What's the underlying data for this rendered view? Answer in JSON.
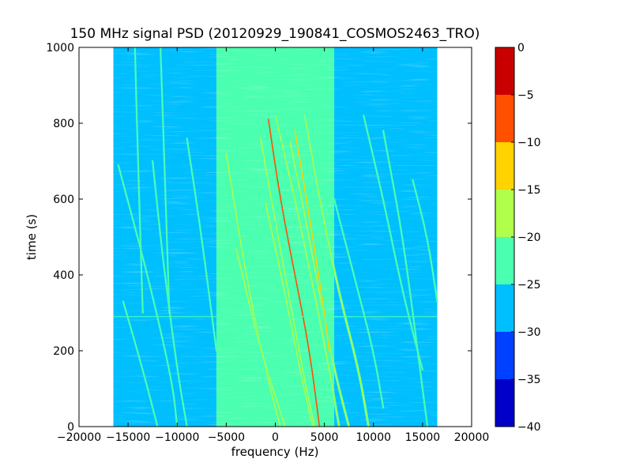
{
  "chart_data": {
    "type": "heatmap",
    "title": "150 MHz signal PSD (20120929_190841_COSMOS2463_TRO)",
    "xlabel": "frequency (Hz)",
    "ylabel": "time (s)",
    "xlim": [
      -20000,
      20000
    ],
    "ylim": [
      0,
      1000
    ],
    "x_ticks": [
      -20000,
      -15000,
      -10000,
      -5000,
      0,
      5000,
      10000,
      15000,
      20000
    ],
    "x_tick_labels": [
      "−20000",
      "−15000",
      "−10000",
      "−5000",
      "0",
      "5000",
      "10000",
      "15000",
      "20000"
    ],
    "y_ticks": [
      0,
      200,
      400,
      600,
      800,
      1000
    ],
    "y_tick_labels": [
      "0",
      "200",
      "400",
      "600",
      "800",
      "1000"
    ],
    "data_extent_x": [
      -16500,
      16500
    ],
    "colorbar": {
      "range": [
        -40,
        0
      ],
      "ticks": [
        0,
        -5,
        -10,
        -15,
        -20,
        -25,
        -30,
        -35,
        -40
      ],
      "tick_labels": [
        "0",
        "−5",
        "−10",
        "−15",
        "−20",
        "−25",
        "−30",
        "−35",
        "−40"
      ],
      "levels": [
        {
          "from": -40,
          "to": -35,
          "color": "#0000c8"
        },
        {
          "from": -35,
          "to": -30,
          "color": "#0040ff"
        },
        {
          "from": -30,
          "to": -25,
          "color": "#00bfff"
        },
        {
          "from": -25,
          "to": -20,
          "color": "#4affb0"
        },
        {
          "from": -20,
          "to": -15,
          "color": "#b0ff4a"
        },
        {
          "from": -15,
          "to": -10,
          "color": "#ffd200"
        },
        {
          "from": -10,
          "to": -5,
          "color": "#ff5000"
        },
        {
          "from": -5,
          "to": 0,
          "color": "#c80000"
        }
      ]
    },
    "regions": [
      {
        "x0": -16500,
        "x1": -6000,
        "level": -27.5
      },
      {
        "x0": -6000,
        "x1": 6000,
        "level": -22.5
      },
      {
        "x0": 6000,
        "x1": 16500,
        "level": -27.5
      }
    ],
    "traces": [
      {
        "points": [
          [
            -15500,
            330
          ],
          [
            -13500,
            150
          ],
          [
            -12000,
            0
          ]
        ],
        "level": -22.5
      },
      {
        "points": [
          [
            -16000,
            690
          ],
          [
            -13000,
            400
          ],
          [
            -10500,
            120
          ],
          [
            -10000,
            0
          ]
        ],
        "level": -22.5
      },
      {
        "points": [
          [
            -12500,
            700
          ],
          [
            -11500,
            450
          ],
          [
            -10000,
            150
          ],
          [
            -9000,
            0
          ]
        ],
        "level": -22.5
      },
      {
        "points": [
          [
            -9000,
            760
          ],
          [
            -7500,
            500
          ],
          [
            -6000,
            200
          ]
        ],
        "level": -22.5
      },
      {
        "points": [
          [
            -11700,
            1000
          ],
          [
            -11300,
            700
          ],
          [
            -10800,
            300
          ]
        ],
        "level": -22.5
      },
      {
        "points": [
          [
            -14300,
            1000
          ],
          [
            -14000,
            700
          ],
          [
            -13500,
            300
          ]
        ],
        "level": -22.5
      },
      {
        "points": [
          [
            -5000,
            720
          ],
          [
            -3000,
            400
          ],
          [
            -1000,
            150
          ],
          [
            500,
            0
          ]
        ],
        "level": -17.5
      },
      {
        "points": [
          [
            -4000,
            470
          ],
          [
            -1500,
            200
          ],
          [
            1000,
            0
          ]
        ],
        "level": -17.5
      },
      {
        "points": [
          [
            -1000,
            590
          ],
          [
            1000,
            350
          ],
          [
            2500,
            150
          ],
          [
            3800,
            0
          ]
        ],
        "level": -17.5
      },
      {
        "points": [
          [
            -1500,
            760
          ],
          [
            0,
            540
          ],
          [
            1500,
            330
          ],
          [
            3000,
            120
          ],
          [
            4000,
            0
          ]
        ],
        "level": -17.5
      },
      {
        "points": [
          [
            -700,
            810
          ],
          [
            500,
            600
          ],
          [
            2000,
            400
          ],
          [
            3500,
            200
          ],
          [
            4500,
            0
          ]
        ],
        "level": -7.5
      },
      {
        "points": [
          [
            0,
            820
          ],
          [
            2000,
            600
          ],
          [
            4000,
            350
          ],
          [
            5500,
            150
          ],
          [
            6500,
            0
          ]
        ],
        "level": -17.5
      },
      {
        "points": [
          [
            1500,
            750
          ],
          [
            3000,
            560
          ],
          [
            4500,
            350
          ],
          [
            6000,
            150
          ],
          [
            7500,
            0
          ]
        ],
        "level": -17.5
      },
      {
        "points": [
          [
            2000,
            780
          ],
          [
            3500,
            550
          ],
          [
            5000,
            300
          ],
          [
            5500,
            200
          ]
        ],
        "level": -12.5
      },
      {
        "points": [
          [
            3000,
            820
          ],
          [
            4500,
            600
          ],
          [
            6500,
            350
          ],
          [
            8500,
            150
          ],
          [
            9500,
            0
          ]
        ],
        "level": -17.5
      },
      {
        "points": [
          [
            6000,
            600
          ],
          [
            8000,
            400
          ],
          [
            10000,
            200
          ],
          [
            11000,
            50
          ]
        ],
        "level": -22.5
      },
      {
        "points": [
          [
            9000,
            820
          ],
          [
            11000,
            600
          ],
          [
            13000,
            350
          ],
          [
            15000,
            150
          ]
        ],
        "level": -22.5
      },
      {
        "points": [
          [
            11000,
            780
          ],
          [
            13000,
            500
          ],
          [
            14500,
            200
          ],
          [
            15500,
            0
          ]
        ],
        "level": -22.5
      },
      {
        "points": [
          [
            14000,
            650
          ],
          [
            15500,
            500
          ],
          [
            16500,
            330
          ]
        ],
        "level": -22.5
      }
    ],
    "hline": {
      "y": 290,
      "level": -22.5
    }
  }
}
